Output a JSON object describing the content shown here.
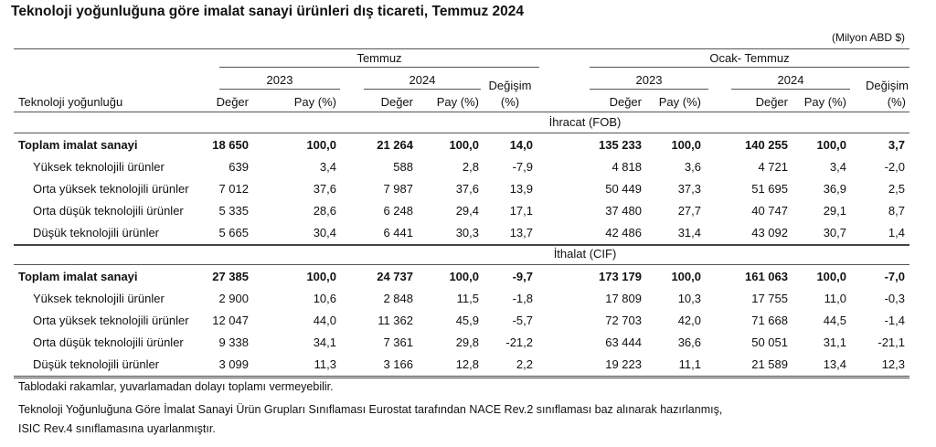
{
  "title": "Teknoloji yoğunluğuna göre imalat sanayi ürünleri dış ticareti,  Temmuz 2024",
  "unit": "(Milyon ABD $)",
  "header": {
    "row_label": "Teknoloji yoğunluğu",
    "group1": "Temmuz",
    "group2": "Ocak- Temmuz",
    "year1": "2023",
    "year2": "2024",
    "value": "Değer",
    "share": "Pay (%)",
    "change_line1": "Değişim",
    "change_line2": "(%)"
  },
  "sections": [
    {
      "name": "İhracat (FOB)",
      "rows": [
        {
          "label": "Toplam imalat sanayi",
          "bold": true,
          "values": [
            "18 650",
            "100,0",
            "21 264",
            "100,0",
            "14,0",
            "135 233",
            "100,0",
            "140 255",
            "100,0",
            "3,7"
          ]
        },
        {
          "label": "Yüksek teknolojili ürünler",
          "values": [
            "639",
            "3,4",
            "588",
            "2,8",
            "-7,9",
            "4 818",
            "3,6",
            "4 721",
            "3,4",
            "-2,0"
          ]
        },
        {
          "label": "Orta yüksek teknolojili ürünler",
          "values": [
            "7 012",
            "37,6",
            "7 987",
            "37,6",
            "13,9",
            "50 449",
            "37,3",
            "51 695",
            "36,9",
            "2,5"
          ]
        },
        {
          "label": "Orta düşük teknolojili ürünler",
          "values": [
            "5 335",
            "28,6",
            "6 248",
            "29,4",
            "17,1",
            "37 480",
            "27,7",
            "40 747",
            "29,1",
            "8,7"
          ]
        },
        {
          "label": "Düşük teknolojili ürünler",
          "values": [
            "5 665",
            "30,4",
            "6 441",
            "30,3",
            "13,7",
            "42 486",
            "31,4",
            "43 092",
            "30,7",
            "1,4"
          ]
        }
      ]
    },
    {
      "name": "İthalat (CIF)",
      "rows": [
        {
          "label": "Toplam imalat sanayi",
          "bold": true,
          "values": [
            "27 385",
            "100,0",
            "24 737",
            "100,0",
            "-9,7",
            "173 179",
            "100,0",
            "161 063",
            "100,0",
            "-7,0"
          ]
        },
        {
          "label": "Yüksek teknolojili ürünler",
          "values": [
            "2 900",
            "10,6",
            "2 848",
            "11,5",
            "-1,8",
            "17 809",
            "10,3",
            "17 755",
            "11,0",
            "-0,3"
          ]
        },
        {
          "label": "Orta yüksek teknolojili ürünler",
          "values": [
            "12 047",
            "44,0",
            "11 362",
            "45,9",
            "-5,7",
            "72 703",
            "42,0",
            "71 668",
            "44,5",
            "-1,4"
          ]
        },
        {
          "label": "Orta düşük teknolojili ürünler",
          "values": [
            "9 338",
            "34,1",
            "7 361",
            "29,8",
            "-21,2",
            "63 444",
            "36,6",
            "50 051",
            "31,1",
            "-21,1"
          ]
        },
        {
          "label": "Düşük teknolojili ürünler",
          "values": [
            "3 099",
            "11,3",
            "3 166",
            "12,8",
            "2,2",
            "19 223",
            "11,1",
            "21 589",
            "13,4",
            "12,3"
          ]
        }
      ]
    }
  ],
  "notes": [
    "Tablodaki rakamlar, yuvarlamadan dolayı toplamı vermeyebilir.",
    "Teknoloji Yoğunluğuna Göre İmalat Sanayi Ürün Grupları Sınıflaması Eurostat tarafından NACE Rev.2 sınıflaması baz alınarak hazırlanmış,",
    "ISIC Rev.4 sınıflamasına uyarlanmıştır."
  ]
}
